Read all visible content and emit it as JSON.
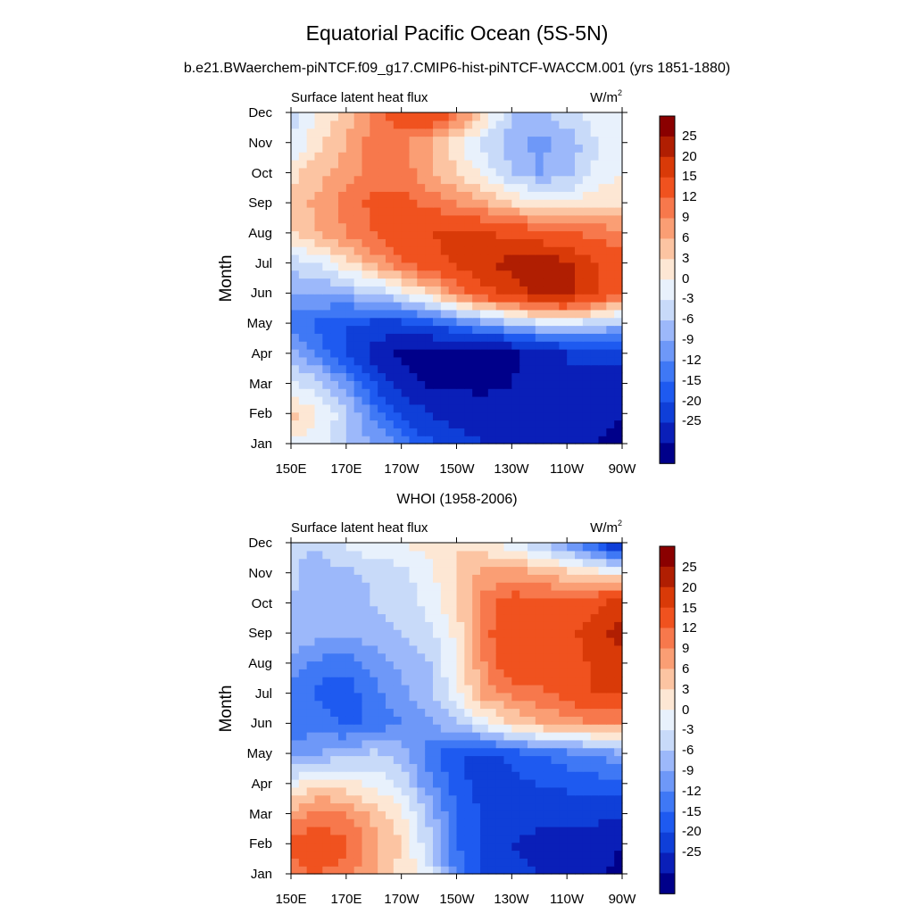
{
  "figure": {
    "title": "Equatorial Pacific Ocean (5S-5N)"
  },
  "colorbar": {
    "labels": [
      "25",
      "20",
      "15",
      "12",
      "9",
      "6",
      "3",
      "0",
      "-3",
      "-6",
      "-9",
      "-12",
      "-15",
      "-20",
      "-25"
    ],
    "levels": [
      -25,
      -20,
      -15,
      -12,
      -9,
      -6,
      -3,
      0,
      3,
      6,
      9,
      12,
      15,
      20,
      25
    ],
    "colors": [
      "#00008a",
      "#0a1fb8",
      "#0f3fd8",
      "#1e5af0",
      "#3f78f5",
      "#6e98f8",
      "#9cb8fa",
      "#c8daf9",
      "#e8f1fc",
      "#fde7d4",
      "#fcc4a2",
      "#fa9e74",
      "#f7784c",
      "#f0521f",
      "#d93a08",
      "#b01e02",
      "#8a0000"
    ]
  },
  "chart_data": [
    {
      "type": "heatmap",
      "title": "b.e21.BWaerchem-piNTCF.f09_g17.CMIP6-hist-piNTCF-WACCM.001 (yrs 1851-1880)",
      "left_label": "Surface latent heat flux",
      "units": "W/m",
      "units_sup": "2",
      "ylabel": "Month",
      "x_ticks": [
        "150E",
        "170E",
        "170W",
        "150W",
        "130W",
        "110W",
        "90W"
      ],
      "y_ticks": [
        "Jan",
        "Feb",
        "Mar",
        "Apr",
        "May",
        "Jun",
        "Jul",
        "Aug",
        "Sep",
        "Oct",
        "Nov",
        "Dec"
      ],
      "x_range": [
        150,
        270
      ],
      "y_range": [
        1,
        12
      ],
      "grid": [
        [
          2,
          1,
          -3,
          -6,
          -10,
          -14,
          -18,
          -20,
          -22,
          -24,
          -24,
          -25,
          -26
        ],
        [
          7,
          3,
          -2,
          -10,
          -16,
          -20,
          -22,
          -23,
          -23,
          -23,
          -22,
          -24,
          -25
        ],
        [
          1,
          -2,
          -8,
          -15,
          -22,
          -26,
          -26,
          -26,
          -25,
          -22,
          -20,
          -22,
          -24
        ],
        [
          -5,
          -10,
          -15,
          -22,
          -27,
          -28,
          -28,
          -27,
          -26,
          -24,
          -20,
          -18,
          -18
        ],
        [
          -10,
          -13,
          -15,
          -16,
          -16,
          -14,
          -10,
          -7,
          -4,
          -1,
          0,
          -2,
          -4
        ],
        [
          -6,
          -6,
          -5,
          -3,
          1,
          6,
          12,
          18,
          22,
          26,
          26,
          20,
          15
        ],
        [
          -2,
          0,
          5,
          10,
          14,
          18,
          21,
          24,
          27,
          28,
          26,
          20,
          17
        ],
        [
          6,
          9,
          12,
          15,
          19,
          20,
          21,
          20,
          19,
          17,
          15,
          14,
          13
        ],
        [
          7,
          10,
          13,
          16,
          16,
          14,
          12,
          9,
          6,
          4,
          3,
          5,
          6
        ],
        [
          5,
          8,
          11,
          13,
          14,
          10,
          6,
          2,
          -3,
          -6,
          -4,
          1,
          3
        ],
        [
          0,
          5,
          9,
          14,
          13,
          9,
          4,
          -1,
          -5,
          -7,
          -5,
          -1,
          2
        ],
        [
          -2,
          4,
          7,
          12,
          18,
          20,
          14,
          6,
          -3,
          -4,
          -1,
          2,
          3
        ]
      ]
    },
    {
      "type": "heatmap",
      "title": "WHOI (1958-2006)",
      "left_label": "Surface latent heat flux",
      "units": "W/m",
      "units_sup": "2",
      "ylabel": "Month",
      "x_ticks": [
        "150E",
        "170E",
        "170W",
        "150W",
        "130W",
        "110W",
        "90W"
      ],
      "y_ticks": [
        "Jan",
        "Feb",
        "Mar",
        "Apr",
        "May",
        "Jun",
        "Jul",
        "Aug",
        "Sep",
        "Oct",
        "Nov",
        "Dec"
      ],
      "x_range": [
        150,
        270
      ],
      "y_range": [
        1,
        12
      ],
      "grid": [
        [
          14,
          15,
          13,
          9,
          5,
          1,
          -10,
          -15,
          -18,
          -20,
          -22,
          -24,
          -26
        ],
        [
          16,
          18,
          16,
          10,
          6,
          -2,
          -12,
          -16,
          -20,
          -22,
          -22,
          -24,
          -25
        ],
        [
          10,
          13,
          12,
          8,
          4,
          -4,
          -12,
          -16,
          -17,
          -18,
          -18,
          -18,
          -20
        ],
        [
          2,
          6,
          4,
          2,
          -1,
          -8,
          -14,
          -16,
          -16,
          -15,
          -14,
          -14,
          -12
        ],
        [
          -8,
          -6,
          -4,
          -2,
          -4,
          -10,
          -15,
          -16,
          -14,
          -12,
          -10,
          -9,
          -6
        ],
        [
          -12,
          -10,
          -13,
          -11,
          -9,
          -7,
          -3,
          2,
          6,
          9,
          10,
          12,
          11
        ],
        [
          -10,
          -13,
          -14,
          -10,
          -7,
          -4,
          2,
          10,
          13,
          14,
          16,
          20,
          21
        ],
        [
          -7,
          -10,
          -11,
          -8,
          -5,
          -3,
          3,
          12,
          19,
          19,
          17,
          21,
          24
        ],
        [
          -3,
          -5,
          -6,
          -4,
          -3,
          -1,
          4,
          14,
          18,
          20,
          18,
          23,
          27
        ],
        [
          -3,
          -6,
          -5,
          -3,
          -2,
          1,
          6,
          13,
          17,
          17,
          16,
          19,
          23
        ],
        [
          -2,
          -5,
          -4,
          -2,
          -1,
          2,
          6,
          10,
          11,
          9,
          7,
          5,
          2
        ],
        [
          -3,
          -2,
          1,
          2,
          3,
          4,
          6,
          4,
          1,
          -3,
          -8,
          -14,
          -22
        ]
      ]
    }
  ]
}
